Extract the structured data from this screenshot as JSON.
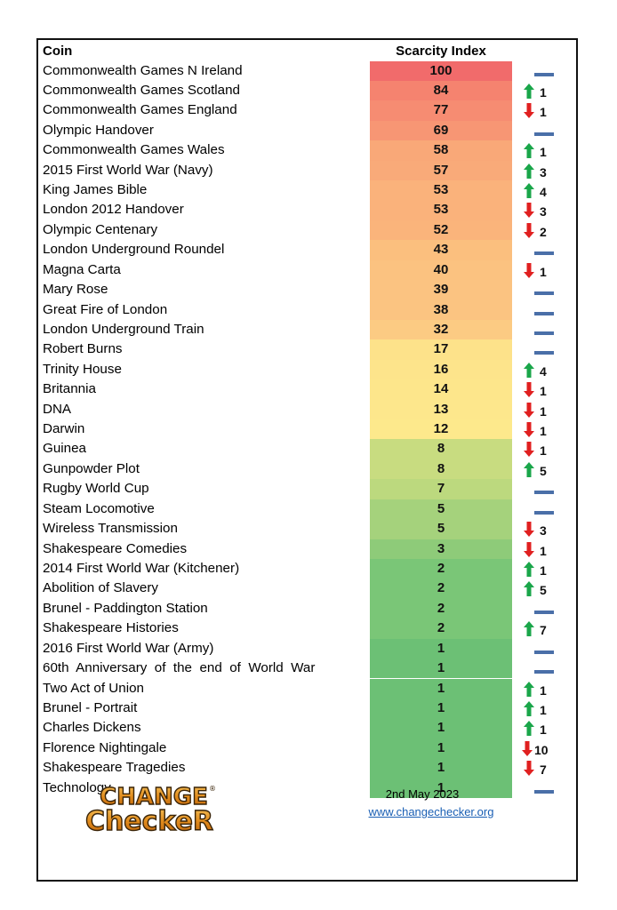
{
  "header": {
    "coin_label": "Coin",
    "index_label": "Scarcity Index"
  },
  "colors": {
    "up": "#1aa64a",
    "down": "#e02020",
    "neutral": "#4a6fa8"
  },
  "rows": [
    {
      "name": "Commonwealth Games N Ireland",
      "value": 100,
      "dir": "none",
      "change": "",
      "color": "#f16b6b"
    },
    {
      "name": "Commonwealth Games Scotland",
      "value": 84,
      "dir": "up",
      "change": "1",
      "color": "#f5836f"
    },
    {
      "name": "Commonwealth Games England",
      "value": 77,
      "dir": "down",
      "change": "1",
      "color": "#f68c72"
    },
    {
      "name": "Olympic Handover",
      "value": 69,
      "dir": "none",
      "change": "",
      "color": "#f79674"
    },
    {
      "name": "Commonwealth Games Wales",
      "value": 58,
      "dir": "up",
      "change": "1",
      "color": "#f9a878"
    },
    {
      "name": "2015 First World War (Navy)",
      "value": 57,
      "dir": "up",
      "change": "3",
      "color": "#f9aa79"
    },
    {
      "name": "King James Bible",
      "value": 53,
      "dir": "up",
      "change": "4",
      "color": "#fab27b"
    },
    {
      "name": "London 2012 Handover",
      "value": 53,
      "dir": "down",
      "change": "3",
      "color": "#fab27b"
    },
    {
      "name": "Olympic Centenary",
      "value": 52,
      "dir": "down",
      "change": "2",
      "color": "#fab47b"
    },
    {
      "name": "London Underground Roundel",
      "value": 43,
      "dir": "none",
      "change": "",
      "color": "#fbbf7e"
    },
    {
      "name": "Magna Carta",
      "value": 40,
      "dir": "down",
      "change": "1",
      "color": "#fbc280"
    },
    {
      "name": "Mary Rose",
      "value": 39,
      "dir": "none",
      "change": "",
      "color": "#fbc381"
    },
    {
      "name": "Great Fire of London",
      "value": 38,
      "dir": "none",
      "change": "",
      "color": "#fbc481"
    },
    {
      "name": "London Underground Train",
      "value": 32,
      "dir": "none",
      "change": "",
      "color": "#fccb83"
    },
    {
      "name": "Robert Burns",
      "value": 17,
      "dir": "none",
      "change": "",
      "color": "#fde28a"
    },
    {
      "name": "Trinity House",
      "value": 16,
      "dir": "up",
      "change": "4",
      "color": "#fde48b"
    },
    {
      "name": "Britannia",
      "value": 14,
      "dir": "down",
      "change": "1",
      "color": "#fde68b"
    },
    {
      "name": "DNA",
      "value": 13,
      "dir": "down",
      "change": "1",
      "color": "#fde78c"
    },
    {
      "name": "Darwin",
      "value": 12,
      "dir": "down",
      "change": "1",
      "color": "#fde98c"
    },
    {
      "name": "Guinea",
      "value": 8,
      "dir": "down",
      "change": "1",
      "color": "#c8dc80"
    },
    {
      "name": "Gunpowder Plot",
      "value": 8,
      "dir": "up",
      "change": "5",
      "color": "#c8dc80"
    },
    {
      "name": "Rugby World Cup",
      "value": 7,
      "dir": "none",
      "change": "",
      "color": "#bcd97e"
    },
    {
      "name": "Steam Locomotive",
      "value": 5,
      "dir": "none",
      "change": "",
      "color": "#a5d27c"
    },
    {
      "name": "Wireless Transmission",
      "value": 5,
      "dir": "down",
      "change": "3",
      "color": "#a5d27c"
    },
    {
      "name": "Shakespeare Comedies",
      "value": 3,
      "dir": "down",
      "change": "1",
      "color": "#8ecb79"
    },
    {
      "name": "2014 First World War (Kitchener)",
      "value": 2,
      "dir": "up",
      "change": "1",
      "color": "#7ac677"
    },
    {
      "name": "Abolition of Slavery",
      "value": 2,
      "dir": "up",
      "change": "5",
      "color": "#7ac677"
    },
    {
      "name": "Brunel - Paddington Station",
      "value": 2,
      "dir": "none",
      "change": "",
      "color": "#7ac677"
    },
    {
      "name": "Shakespeare Histories",
      "value": 2,
      "dir": "up",
      "change": "7",
      "color": "#7ac677"
    },
    {
      "name": "2016 First World War (Army)",
      "value": 1,
      "dir": "none",
      "change": "",
      "color": "#6cc075"
    },
    {
      "name": "60th  Anniversary  of  the  end  of  World  War",
      "value": 1,
      "dir": "none",
      "change": "",
      "color": "#6cc075"
    },
    {
      "name": "Two Act of Union",
      "value": 1,
      "dir": "up",
      "change": "1",
      "color": "#6cc075"
    },
    {
      "name": "Brunel - Portrait",
      "value": 1,
      "dir": "up",
      "change": "1",
      "color": "#6cc075"
    },
    {
      "name": "Charles Dickens",
      "value": 1,
      "dir": "up",
      "change": "1",
      "color": "#6cc075"
    },
    {
      "name": "Florence Nightingale",
      "value": 1,
      "dir": "down",
      "change": "10",
      "color": "#6cc075"
    },
    {
      "name": "Shakespeare Tragedies",
      "value": 1,
      "dir": "down",
      "change": "7",
      "color": "#6cc075"
    },
    {
      "name": "Technology",
      "value": 1,
      "dir": "none",
      "change": "",
      "color": "#6cc075"
    }
  ],
  "footer": {
    "logo_line1": "CHANGE",
    "logo_line2": "CheckeR",
    "logo_mark": "®",
    "date": "2nd May 2023",
    "url": "www.changechecker.org"
  }
}
